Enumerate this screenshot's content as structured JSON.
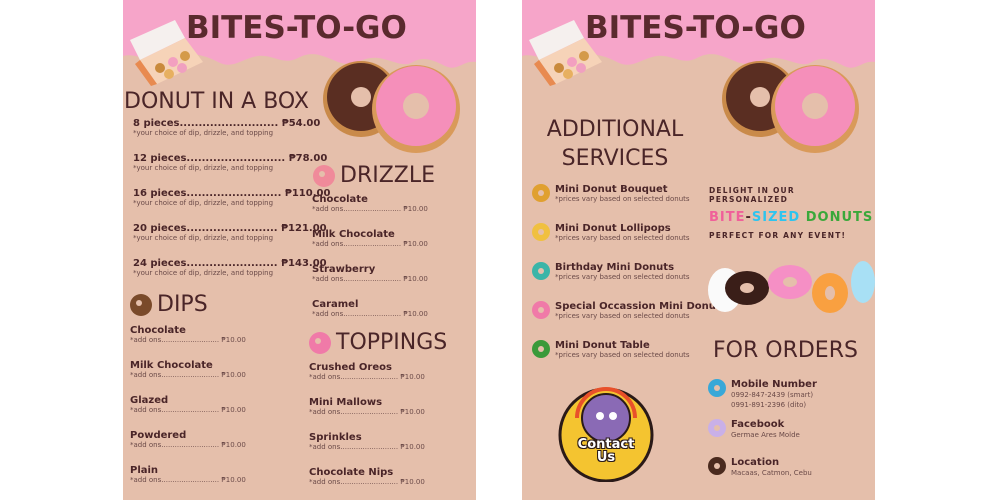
{
  "brand": "BITES-TO-GO",
  "left": {
    "box": {
      "heading": "DONUT IN A BOX",
      "note": "*your choice of dip, drizzle, and topping",
      "items": [
        {
          "label": "8 pieces..........................",
          "price": "₱54.00"
        },
        {
          "label": "12 pieces..........................",
          "price": "₱78.00"
        },
        {
          "label": "16 pieces.........................",
          "price": "₱110.00"
        },
        {
          "label": "20 pieces........................",
          "price": "₱121.00"
        },
        {
          "label": "24 pieces........................",
          "price": "₱143.00"
        }
      ]
    },
    "dips": {
      "heading": "DIPS",
      "items": [
        {
          "name": "Chocolate",
          "addon": "*add ons.......................... ₱10.00"
        },
        {
          "name": "Milk Chocolate",
          "addon": "*add ons.......................... ₱10.00"
        },
        {
          "name": "Glazed",
          "addon": "*add ons.......................... ₱10.00"
        },
        {
          "name": "Powdered",
          "addon": "*add ons.......................... ₱10.00"
        },
        {
          "name": "Plain",
          "addon": "*add ons.......................... ₱10.00"
        }
      ]
    },
    "drizzle": {
      "heading": "DRIZZLE",
      "items": [
        {
          "name": "Chocolate",
          "addon": "*add ons.......................... ₱10.00"
        },
        {
          "name": "Milk Chocolate",
          "addon": "*add ons.......................... ₱10.00"
        },
        {
          "name": "Strawberry",
          "addon": "*add ons.......................... ₱10.00"
        },
        {
          "name": "Caramel",
          "addon": "*add ons.......................... ₱10.00"
        }
      ]
    },
    "toppings": {
      "heading": "TOPPINGS",
      "items": [
        {
          "name": "Crushed Oreos",
          "addon": "*add ons.......................... ₱10.00"
        },
        {
          "name": "Mini Mallows",
          "addon": "*add ons.......................... ₱10.00"
        },
        {
          "name": "Sprinkles",
          "addon": "*add ons.......................... ₱10.00"
        },
        {
          "name": "Chocolate Nips",
          "addon": "*add ons.......................... ₱10.00"
        }
      ]
    }
  },
  "right": {
    "services": {
      "heading1": "ADDITIONAL",
      "heading2": "SERVICES",
      "note": "*prices vary based on selected donuts",
      "items": [
        {
          "name": "Mini Donut Bouquet",
          "color": "#e0a030"
        },
        {
          "name": "Mini Donut Lollipops",
          "color": "#f0c040"
        },
        {
          "name": "Birthday Mini Donuts",
          "color": "#3bb5a8"
        },
        {
          "name": "Special Occassion Mini Donuts",
          "color": "#f07aa8"
        },
        {
          "name": "Mini Donut Table",
          "color": "#3a9a3a"
        }
      ]
    },
    "promo": {
      "line1": "DELIGHT IN OUR PERSONALIZED",
      "bite": "BITE",
      "dash": "-",
      "sized": "SIZED",
      "donuts": "DONUTS",
      "line3": "PERFECT FOR ANY EVENT!",
      "colors": {
        "bite": "#f0609a",
        "sized": "#2ec4ee",
        "donuts": "#3aa83a"
      }
    },
    "contact_badge": {
      "line1": "Contact",
      "line2": "Us"
    },
    "orders": {
      "heading": "FOR ORDERS",
      "mobile": {
        "label": "Mobile Number",
        "line1": "0992-847-2439 (smart)",
        "line2": "0991-891-2396 (dito)"
      },
      "facebook": {
        "label": "Facebook",
        "value": "Germae Ares Molde"
      },
      "location": {
        "label": "Location",
        "value": "Macaas, Catmon, Cebu"
      }
    }
  }
}
